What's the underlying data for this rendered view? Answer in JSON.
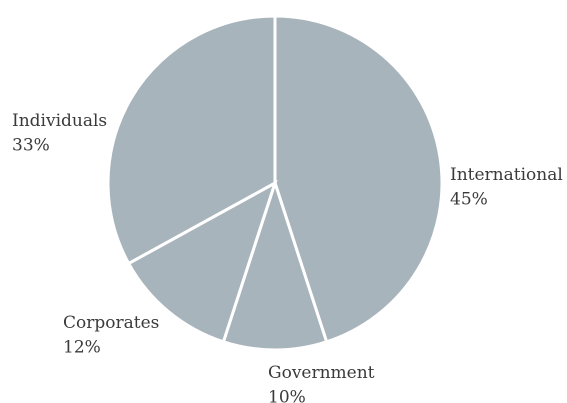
{
  "chart_data": {
    "type": "pie",
    "slices": [
      {
        "label": "International",
        "value": 45,
        "value_label": "45%"
      },
      {
        "label": "Government",
        "value": 10,
        "value_label": "10%"
      },
      {
        "label": "Corporates",
        "value": 12,
        "value_label": "12%"
      },
      {
        "label": "Individuals",
        "value": 33,
        "value_label": "33%"
      }
    ],
    "start_angle_deg": 0,
    "direction": "clockwise",
    "slice_color": "#a8b4bc",
    "separator_color": "#ffffff",
    "text_color": "#3a3a3a",
    "legend": "none"
  }
}
